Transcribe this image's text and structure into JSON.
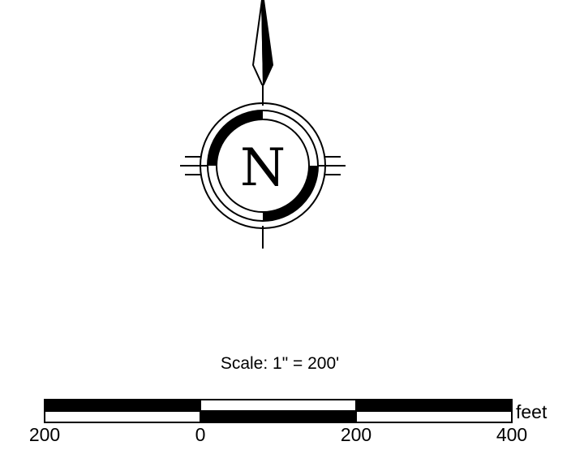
{
  "compass": {
    "letter": "N",
    "icon": "north-arrow-icon"
  },
  "scale": {
    "title": "Scale: 1\" = 200'",
    "unit": "feet",
    "ticks": [
      "200",
      "0",
      "200",
      "400"
    ]
  },
  "colors": {
    "ink": "#000000",
    "paper": "#ffffff"
  }
}
